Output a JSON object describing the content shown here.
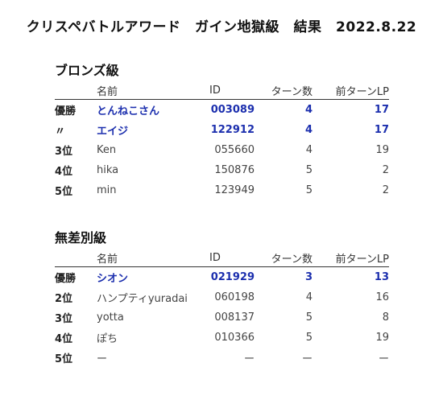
{
  "title": "クリスペバトルアワード　ガイン地獄級　結果　2022.8.22",
  "columns": {
    "name": "名前",
    "id": "ID",
    "turns": "ターン数",
    "lp": "前ターンLP"
  },
  "sections": [
    {
      "title": "ブロンズ級",
      "rows": [
        {
          "rank": "優勝",
          "name": "とんねこさん",
          "id": "003089",
          "turns": "4",
          "lp": "17",
          "highlight": true
        },
        {
          "rank": "〃",
          "name": "エイジ",
          "id": "122912",
          "turns": "4",
          "lp": "17",
          "highlight": true
        },
        {
          "rank": "3位",
          "name": "Ken",
          "id": "055660",
          "turns": "4",
          "lp": "19",
          "highlight": false
        },
        {
          "rank": "4位",
          "name": "hika",
          "id": "150876",
          "turns": "5",
          "lp": "2",
          "highlight": false
        },
        {
          "rank": "5位",
          "name": "min",
          "id": "123949",
          "turns": "5",
          "lp": "2",
          "highlight": false
        }
      ]
    },
    {
      "title": "無差別級",
      "rows": [
        {
          "rank": "優勝",
          "name": "シオン",
          "id": "021929",
          "turns": "3",
          "lp": "13",
          "highlight": true
        },
        {
          "rank": "2位",
          "name": "ハンプティyuradai",
          "id": "060198",
          "turns": "4",
          "lp": "16",
          "highlight": false
        },
        {
          "rank": "3位",
          "name": "yotta",
          "id": "008137",
          "turns": "5",
          "lp": "8",
          "highlight": false
        },
        {
          "rank": "4位",
          "name": "ぽち",
          "id": "010366",
          "turns": "5",
          "lp": "19",
          "highlight": false
        },
        {
          "rank": "5位",
          "name": "ー",
          "id": "ー",
          "turns": "ー",
          "lp": "ー",
          "highlight": false
        }
      ]
    }
  ],
  "colors": {
    "highlight": "#1c2fae",
    "text": "#222222",
    "rule": "#333333"
  }
}
